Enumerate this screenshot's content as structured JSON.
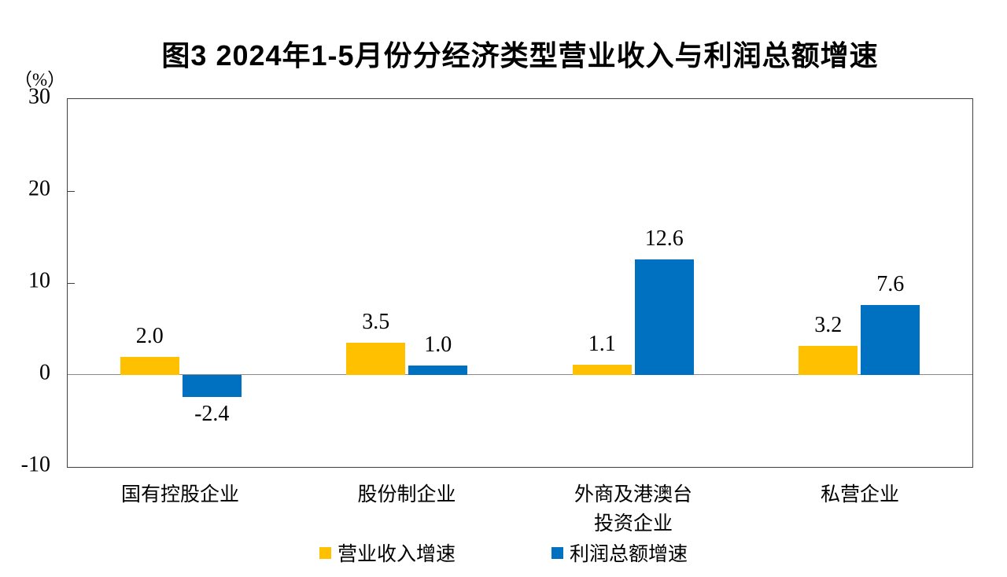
{
  "chart": {
    "title": "图3 2024年1-5月份分经济类型营业收入与利润总额增速",
    "unit_label": "（%）"
  },
  "chart_data": {
    "type": "bar",
    "title": "图3 2024年1-5月份分经济类型营业收入与利润总额增速",
    "unit": "（%）",
    "categories": [
      "国有控股企业",
      "股份制企业",
      "外商及港澳台\n投资企业",
      "私营企业"
    ],
    "series": [
      {
        "name": "营业收入增速",
        "color": "#FFC000",
        "values": [
          2.0,
          3.5,
          1.1,
          3.2
        ],
        "labels": [
          "2.0",
          "3.5",
          "1.1",
          "3.2"
        ]
      },
      {
        "name": "利润总额增速",
        "color": "#0070C0",
        "values": [
          -2.4,
          1.0,
          12.6,
          7.6
        ],
        "labels": [
          "-2.4",
          "1.0",
          "12.6",
          "7.6"
        ]
      }
    ],
    "ylim": [
      -10,
      30
    ],
    "yticks": [
      30,
      20,
      10,
      0,
      -10
    ],
    "grid": false,
    "legend_position": "bottom",
    "axis_color": "#404040",
    "zero_line_color": "#8a8a8a",
    "xlabel": "",
    "ylabel": "（%）"
  }
}
